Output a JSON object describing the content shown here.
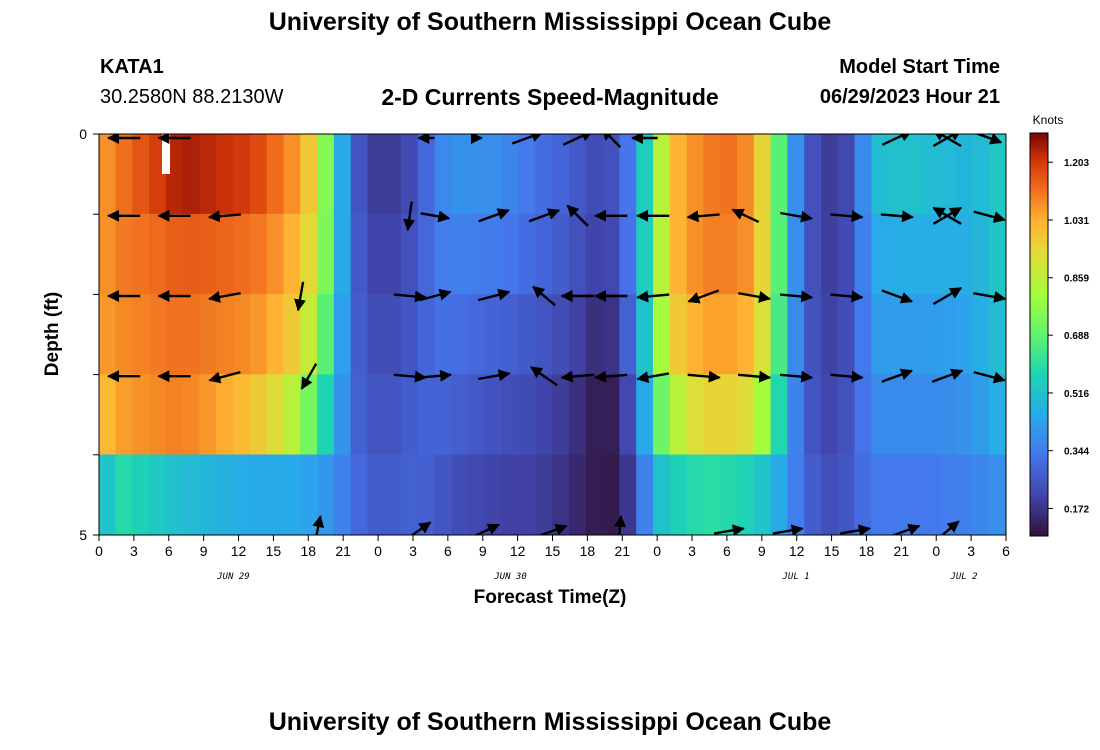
{
  "header": {
    "title": "University of Southern Mississippi Ocean Cube",
    "station_id": "KATA1",
    "coords": "30.2580N  88.2130W",
    "subtitle": "2-D Currents Speed-Magnitude",
    "start_label": "Model Start Time",
    "start_value": "06/29/2023 Hour 21"
  },
  "footer": {
    "title": "University of Southern Mississippi Ocean Cube"
  },
  "chart_data": {
    "type": "heatmap",
    "xlabel": "Forecast Time(Z)",
    "ylabel": "Depth (ft)",
    "y_tick_labels": [
      "0",
      "5"
    ],
    "ylim": [
      0,
      5
    ],
    "x_range_hours": [
      0,
      54
    ],
    "x_tick_labels": [
      "0",
      "3",
      "6",
      "9",
      "12",
      "15",
      "18",
      "21",
      "0",
      "3",
      "6",
      "9",
      "12",
      "15",
      "18",
      "21",
      "0",
      "3",
      "6",
      "9",
      "12",
      "15",
      "18",
      "21",
      "0",
      "3",
      "6"
    ],
    "date_labels": [
      {
        "text": "JUN 29",
        "hour": 8
      },
      {
        "text": "JUN 30",
        "hour": 24.5
      },
      {
        "text": "JUL 1",
        "hour": 41.5
      },
      {
        "text": "JUL 2",
        "hour": 51.5
      }
    ],
    "colorbar": {
      "title": "Knots",
      "min": 0.09,
      "max": 1.29,
      "tick_values": [
        0.172,
        0.344,
        0.516,
        0.688,
        0.859,
        1.031,
        1.203
      ],
      "tick_labels": [
        "0.172",
        "0.344",
        "0.516",
        "0.688",
        "0.859",
        "1.031",
        "1.203"
      ]
    },
    "depth_layers": 5,
    "speed_profiles": [
      {
        "hour": 0,
        "values": [
          1.05,
          1.05,
          1.05,
          0.98,
          0.45
        ]
      },
      {
        "hour": 1,
        "values": [
          1.1,
          1.1,
          1.08,
          1.05,
          0.6
        ]
      },
      {
        "hour": 3,
        "values": [
          1.18,
          1.12,
          1.1,
          1.08,
          0.55
        ]
      },
      {
        "hour": 5,
        "values": [
          1.25,
          1.15,
          1.12,
          1.1,
          0.5
        ]
      },
      {
        "hour": 7,
        "values": [
          1.22,
          1.14,
          1.1,
          1.05,
          0.48
        ]
      },
      {
        "hour": 9,
        "values": [
          1.2,
          1.12,
          1.08,
          1.0,
          0.45
        ]
      },
      {
        "hour": 10,
        "values": [
          1.15,
          1.1,
          1.05,
          0.95,
          0.45
        ]
      },
      {
        "hour": 11,
        "values": [
          1.1,
          1.05,
          1.0,
          0.9,
          0.45
        ]
      },
      {
        "hour": 12,
        "values": [
          1.05,
          1.0,
          0.95,
          0.8,
          0.45
        ]
      },
      {
        "hour": 13,
        "values": [
          0.9,
          0.88,
          0.8,
          0.65,
          0.42
        ]
      },
      {
        "hour": 14,
        "values": [
          0.6,
          0.6,
          0.55,
          0.5,
          0.4
        ]
      },
      {
        "hour": 15,
        "values": [
          0.3,
          0.3,
          0.3,
          0.3,
          0.32
        ]
      },
      {
        "hour": 16,
        "values": [
          0.2,
          0.22,
          0.24,
          0.26,
          0.28
        ]
      },
      {
        "hour": 17,
        "values": [
          0.18,
          0.2,
          0.22,
          0.24,
          0.26
        ]
      },
      {
        "hour": 18,
        "values": [
          0.2,
          0.22,
          0.24,
          0.26,
          0.28
        ]
      },
      {
        "hour": 19,
        "values": [
          0.25,
          0.26,
          0.27,
          0.28,
          0.28
        ]
      },
      {
        "hour": 20,
        "values": [
          0.35,
          0.33,
          0.31,
          0.29,
          0.27
        ]
      },
      {
        "hour": 21,
        "values": [
          0.4,
          0.36,
          0.32,
          0.28,
          0.24
        ]
      },
      {
        "hour": 24,
        "values": [
          0.38,
          0.34,
          0.28,
          0.24,
          0.2
        ]
      },
      {
        "hour": 26,
        "values": [
          0.32,
          0.3,
          0.26,
          0.22,
          0.2
        ]
      },
      {
        "hour": 28,
        "values": [
          0.28,
          0.26,
          0.22,
          0.18,
          0.16
        ]
      },
      {
        "hour": 29,
        "values": [
          0.24,
          0.22,
          0.18,
          0.14,
          0.13
        ]
      },
      {
        "hour": 30,
        "values": [
          0.22,
          0.2,
          0.14,
          0.1,
          0.1
        ]
      },
      {
        "hour": 31,
        "values": [
          0.26,
          0.24,
          0.2,
          0.14,
          0.12
        ]
      },
      {
        "hour": 32,
        "values": [
          0.4,
          0.4,
          0.36,
          0.3,
          0.24
        ]
      },
      {
        "hour": 33,
        "values": [
          0.7,
          0.7,
          0.68,
          0.6,
          0.48
        ]
      },
      {
        "hour": 34,
        "values": [
          1.0,
          1.0,
          0.95,
          0.82,
          0.55
        ]
      },
      {
        "hour": 36,
        "values": [
          1.1,
          1.1,
          1.05,
          0.95,
          0.6
        ]
      },
      {
        "hour": 38,
        "values": [
          1.12,
          1.1,
          1.05,
          0.95,
          0.58
        ]
      },
      {
        "hour": 39,
        "values": [
          1.05,
          1.05,
          1.0,
          0.9,
          0.55
        ]
      },
      {
        "hour": 40,
        "values": [
          0.85,
          0.85,
          0.82,
          0.72,
          0.5
        ]
      },
      {
        "hour": 41,
        "values": [
          0.5,
          0.5,
          0.48,
          0.44,
          0.4
        ]
      },
      {
        "hour": 42,
        "values": [
          0.28,
          0.28,
          0.28,
          0.28,
          0.3
        ]
      },
      {
        "hour": 43,
        "values": [
          0.2,
          0.2,
          0.21,
          0.22,
          0.24
        ]
      },
      {
        "hour": 44,
        "values": [
          0.18,
          0.19,
          0.2,
          0.21,
          0.23
        ]
      },
      {
        "hour": 45,
        "values": [
          0.26,
          0.26,
          0.26,
          0.27,
          0.28
        ]
      },
      {
        "hour": 46,
        "values": [
          0.5,
          0.45,
          0.42,
          0.38,
          0.34
        ]
      },
      {
        "hour": 48,
        "values": [
          0.52,
          0.46,
          0.42,
          0.38,
          0.34
        ]
      },
      {
        "hour": 50,
        "values": [
          0.5,
          0.46,
          0.42,
          0.38,
          0.34
        ]
      },
      {
        "hour": 52,
        "values": [
          0.48,
          0.46,
          0.44,
          0.4,
          0.36
        ]
      },
      {
        "hour": 54,
        "values": [
          0.55,
          0.55,
          0.52,
          0.48,
          0.4
        ]
      }
    ],
    "current_vectors": [
      {
        "hour": 1.5,
        "depth": 0,
        "dir": 180,
        "speed": 1.0
      },
      {
        "hour": 4.5,
        "depth": 0,
        "dir": 180,
        "speed": 1.0
      },
      {
        "hour": 19.5,
        "depth": 0,
        "dir": 180,
        "speed": 0.5
      },
      {
        "hour": 22.5,
        "depth": 0,
        "dir": 0,
        "speed": 0.3
      },
      {
        "hour": 25.5,
        "depth": 0,
        "dir": -20,
        "speed": 1.0
      },
      {
        "hour": 28.5,
        "depth": 0,
        "dir": -25,
        "speed": 1.0
      },
      {
        "hour": 30.5,
        "depth": 0,
        "dir": -135,
        "speed": 0.8
      },
      {
        "hour": 32.5,
        "depth": 0,
        "dir": 180,
        "speed": 0.8
      },
      {
        "hour": 47.5,
        "depth": 0,
        "dir": -25,
        "speed": 1.0
      },
      {
        "hour": 50.5,
        "depth": 0,
        "dir": -150,
        "speed": 1.0
      },
      {
        "hour": 50.5,
        "depth": 0,
        "dir": -30,
        "speed": 1.0
      },
      {
        "hour": 53,
        "depth": 0,
        "dir": 20,
        "speed": 0.8
      },
      {
        "hour": 1.5,
        "depth": 1,
        "dir": 180,
        "speed": 1.0
      },
      {
        "hour": 4.5,
        "depth": 1,
        "dir": 180,
        "speed": 1.0
      },
      {
        "hour": 7.5,
        "depth": 1,
        "dir": 175,
        "speed": 1.0
      },
      {
        "hour": 11.5,
        "depth": 1,
        "dir": 90,
        "speed": 0.0
      },
      {
        "hour": 18.5,
        "depth": 1,
        "dir": 98,
        "speed": 0.9
      },
      {
        "hour": 20,
        "depth": 1,
        "dir": 10,
        "speed": 0.9
      },
      {
        "hour": 23.5,
        "depth": 1,
        "dir": -20,
        "speed": 1.0
      },
      {
        "hour": 26.5,
        "depth": 1,
        "dir": -20,
        "speed": 1.0
      },
      {
        "hour": 28.5,
        "depth": 1,
        "dir": -135,
        "speed": 0.9
      },
      {
        "hour": 30.5,
        "depth": 1,
        "dir": 180,
        "speed": 1.0
      },
      {
        "hour": 33,
        "depth": 1,
        "dir": 180,
        "speed": 1.0
      },
      {
        "hour": 36,
        "depth": 1,
        "dir": 175,
        "speed": 1.0
      },
      {
        "hour": 38.5,
        "depth": 1,
        "dir": -155,
        "speed": 0.9
      },
      {
        "hour": 41.5,
        "depth": 1,
        "dir": 10,
        "speed": 1.0
      },
      {
        "hour": 44.5,
        "depth": 1,
        "dir": 5,
        "speed": 1.0
      },
      {
        "hour": 47.5,
        "depth": 1,
        "dir": 5,
        "speed": 1.0
      },
      {
        "hour": 50.5,
        "depth": 1,
        "dir": -150,
        "speed": 1.0
      },
      {
        "hour": 50.5,
        "depth": 1,
        "dir": -30,
        "speed": 1.0
      },
      {
        "hour": 53,
        "depth": 1,
        "dir": 15,
        "speed": 1.0
      },
      {
        "hour": 1.5,
        "depth": 2,
        "dir": 180,
        "speed": 1.0
      },
      {
        "hour": 4.5,
        "depth": 2,
        "dir": 180,
        "speed": 1.0
      },
      {
        "hour": 7.5,
        "depth": 2,
        "dir": 170,
        "speed": 1.0
      },
      {
        "hour": 12,
        "depth": 2,
        "dir": 100,
        "speed": 0.9
      },
      {
        "hour": 18.5,
        "depth": 2,
        "dir": 5,
        "speed": 1.0
      },
      {
        "hour": 20,
        "depth": 2,
        "dir": -15,
        "speed": 1.0
      },
      {
        "hour": 23.5,
        "depth": 2,
        "dir": -15,
        "speed": 1.0
      },
      {
        "hour": 26.5,
        "depth": 2,
        "dir": -140,
        "speed": 0.9
      },
      {
        "hour": 28.5,
        "depth": 2,
        "dir": 180,
        "speed": 1.0
      },
      {
        "hour": 30.5,
        "depth": 2,
        "dir": 180,
        "speed": 1.0
      },
      {
        "hour": 33,
        "depth": 2,
        "dir": 175,
        "speed": 1.0
      },
      {
        "hour": 36,
        "depth": 2,
        "dir": 160,
        "speed": 1.0
      },
      {
        "hour": 39,
        "depth": 2,
        "dir": 10,
        "speed": 1.0
      },
      {
        "hour": 41.5,
        "depth": 2,
        "dir": 5,
        "speed": 1.0
      },
      {
        "hour": 44.5,
        "depth": 2,
        "dir": 5,
        "speed": 1.0
      },
      {
        "hour": 47.5,
        "depth": 2,
        "dir": 20,
        "speed": 1.0
      },
      {
        "hour": 50.5,
        "depth": 2,
        "dir": -30,
        "speed": 1.0
      },
      {
        "hour": 53,
        "depth": 2,
        "dir": 10,
        "speed": 1.0
      },
      {
        "hour": 1.5,
        "depth": 3,
        "dir": 180,
        "speed": 1.0
      },
      {
        "hour": 4.5,
        "depth": 3,
        "dir": 180,
        "speed": 1.0
      },
      {
        "hour": 7.5,
        "depth": 3,
        "dir": 165,
        "speed": 1.0
      },
      {
        "hour": 12.5,
        "depth": 3,
        "dir": 120,
        "speed": 0.9
      },
      {
        "hour": 18.5,
        "depth": 3,
        "dir": 5,
        "speed": 1.0
      },
      {
        "hour": 20,
        "depth": 3,
        "dir": -5,
        "speed": 1.0
      },
      {
        "hour": 23.5,
        "depth": 3,
        "dir": -10,
        "speed": 1.0
      },
      {
        "hour": 26.5,
        "depth": 3,
        "dir": -145,
        "speed": 1.0
      },
      {
        "hour": 28.5,
        "depth": 3,
        "dir": 175,
        "speed": 1.0
      },
      {
        "hour": 30.5,
        "depth": 3,
        "dir": 175,
        "speed": 1.0
      },
      {
        "hour": 33,
        "depth": 3,
        "dir": 170,
        "speed": 1.0
      },
      {
        "hour": 36,
        "depth": 3,
        "dir": 5,
        "speed": 1.0
      },
      {
        "hour": 39,
        "depth": 3,
        "dir": 5,
        "speed": 1.0
      },
      {
        "hour": 41.5,
        "depth": 3,
        "dir": 5,
        "speed": 1.0
      },
      {
        "hour": 44.5,
        "depth": 3,
        "dir": 5,
        "speed": 1.0
      },
      {
        "hour": 47.5,
        "depth": 3,
        "dir": -20,
        "speed": 1.0
      },
      {
        "hour": 50.5,
        "depth": 3,
        "dir": -20,
        "speed": 1.0
      },
      {
        "hour": 53,
        "depth": 3,
        "dir": 15,
        "speed": 1.0
      }
    ],
    "_note_vectors_dir": "direction in degrees, 0=east, positive=south on screen"
  }
}
